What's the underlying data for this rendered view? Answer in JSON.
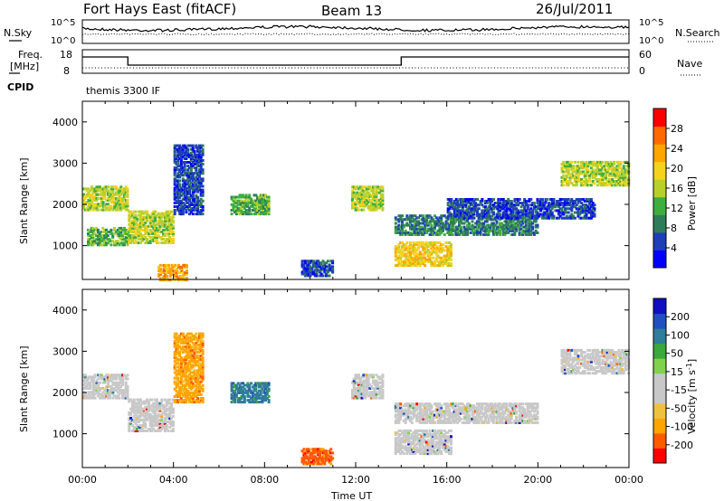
{
  "header": {
    "station": "Fort Hays East (fitACF)",
    "beam": "Beam 13",
    "date": "26/Jul/2011"
  },
  "colors": {
    "power_scale": [
      "#0000ff",
      "#1f3fb8",
      "#2e7d5a",
      "#3fae3f",
      "#b9cf2a",
      "#f5d21c",
      "#ffa500",
      "#ff6a00",
      "#ff0000"
    ],
    "velocity_scale": [
      "#ff0000",
      "#ff5a00",
      "#ffa500",
      "#f0c040",
      "#c8c8c8",
      "#c8c8c8",
      "#7fd24a",
      "#3aa83a",
      "#2e7d9a",
      "#2050c0",
      "#1010c0"
    ],
    "velocity_ground": "#c8c8c8"
  },
  "nsky_panel": {
    "left_label": "N.Sky",
    "right_label": "N.Search",
    "left_ticks": [
      "10^5",
      "10^0"
    ],
    "right_ticks": [
      "10^5",
      "10^0"
    ]
  },
  "freq_panel": {
    "left_label_1": "Freq.",
    "left_label_2": "[MHz]",
    "left_ticks": [
      "18",
      "8"
    ],
    "right_label": "Nave",
    "right_ticks": [
      "60",
      "0"
    ]
  },
  "cpid": {
    "label": "CPID",
    "value": "themis 3300 IF"
  },
  "chart_data": [
    {
      "type": "heatmap",
      "title": "",
      "ylabel": "Slant Range [km]",
      "xlabel": "",
      "colorbar_label": "Power [dB]",
      "colorbar_ticks": [
        "28",
        "24",
        "20",
        "16",
        "12",
        "8",
        "4"
      ],
      "xlim": [
        "00:00",
        "24:00"
      ],
      "ylim": [
        180,
        4500
      ],
      "yticks": [
        "1000",
        "2000",
        "3000",
        "4000"
      ],
      "regions": [
        {
          "t0": 0.0,
          "t1": 2.0,
          "r0": 1900,
          "r1": 2500,
          "level": 20
        },
        {
          "t0": 0.2,
          "t1": 2.0,
          "r0": 1050,
          "r1": 1500,
          "level": 16
        },
        {
          "t0": 2.0,
          "t1": 4.0,
          "r0": 1100,
          "r1": 1900,
          "level": 18
        },
        {
          "t0": 4.0,
          "t1": 5.3,
          "r0": 1800,
          "r1": 3500,
          "level": 8
        },
        {
          "t0": 3.3,
          "t1": 4.6,
          "r0": 200,
          "r1": 600,
          "level": 28
        },
        {
          "t0": 6.5,
          "t1": 8.2,
          "r0": 1800,
          "r1": 2300,
          "level": 16
        },
        {
          "t0": 9.6,
          "t1": 11.0,
          "r0": 300,
          "r1": 700,
          "level": 8
        },
        {
          "t0": 11.8,
          "t1": 13.2,
          "r0": 1900,
          "r1": 2500,
          "level": 20
        },
        {
          "t0": 13.7,
          "t1": 16.2,
          "r0": 550,
          "r1": 1150,
          "level": 24
        },
        {
          "t0": 13.7,
          "t1": 20.0,
          "r0": 1300,
          "r1": 1800,
          "level": 12
        },
        {
          "t0": 16.0,
          "t1": 22.5,
          "r0": 1700,
          "r1": 2200,
          "level": 8
        },
        {
          "t0": 21.0,
          "t1": 24.0,
          "r0": 2500,
          "r1": 3100,
          "level": 20
        }
      ]
    },
    {
      "type": "heatmap",
      "title": "",
      "ylabel": "Slant Range [km]",
      "xlabel": "Time UT",
      "colorbar_label": "Velocity [m s^-1]",
      "colorbar_ticks": [
        "200",
        "100",
        "50",
        "15",
        "-15",
        "-50",
        "-100",
        "-200"
      ],
      "xticks": [
        "00:00",
        "04:00",
        "08:00",
        "12:00",
        "16:00",
        "20:00",
        "00:00"
      ],
      "xlim": [
        "00:00",
        "24:00"
      ],
      "ylim": [
        180,
        4500
      ],
      "yticks": [
        "1000",
        "2000",
        "3000",
        "4000"
      ],
      "regions": [
        {
          "t0": 0.0,
          "t1": 2.0,
          "r0": 1900,
          "r1": 2500,
          "velocity": 0
        },
        {
          "t0": 2.0,
          "t1": 4.0,
          "r0": 1100,
          "r1": 1900,
          "velocity": 0
        },
        {
          "t0": 4.0,
          "t1": 5.3,
          "r0": 1800,
          "r1": 3500,
          "velocity": -40
        },
        {
          "t0": 6.5,
          "t1": 8.2,
          "r0": 1800,
          "r1": 2300,
          "velocity": 60
        },
        {
          "t0": 9.6,
          "t1": 11.0,
          "r0": 300,
          "r1": 700,
          "velocity": -80
        },
        {
          "t0": 11.8,
          "t1": 13.2,
          "r0": 1900,
          "r1": 2500,
          "velocity": 0
        },
        {
          "t0": 13.7,
          "t1": 16.2,
          "r0": 550,
          "r1": 1150,
          "velocity": 0
        },
        {
          "t0": 13.7,
          "t1": 20.0,
          "r0": 1300,
          "r1": 1800,
          "velocity": 0
        },
        {
          "t0": 21.0,
          "t1": 24.0,
          "r0": 2500,
          "r1": 3100,
          "velocity": 0
        }
      ]
    }
  ]
}
